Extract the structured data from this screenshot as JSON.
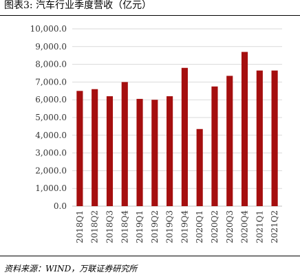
{
  "title": "图表3:   汽车行业季度营收（亿元）",
  "source": "资料来源：WIND，万联证券研究所",
  "colors": {
    "bar": "#a50f0f",
    "grid": "#d9d9d9",
    "axis": "#bfbfbf"
  },
  "chart_data": {
    "type": "bar",
    "categories": [
      "2018Q1",
      "2018Q2",
      "2018Q3",
      "2018Q4",
      "2019Q1",
      "2019Q2",
      "2019Q3",
      "2019Q4",
      "2020Q1",
      "2020Q2",
      "2020Q3",
      "2020Q4",
      "2021Q1",
      "2021Q2"
    ],
    "values": [
      6500,
      6600,
      6200,
      7000,
      6050,
      6000,
      6200,
      7800,
      4350,
      6750,
      7350,
      8700,
      7650,
      7650
    ],
    "y_ticks": [
      "0.0",
      "1,000.0",
      "2,000.0",
      "3,000.0",
      "4,000.0",
      "5,000.0",
      "6,000.0",
      "7,000.0",
      "8,000.0",
      "9,000.0",
      "10,000.0"
    ],
    "ylim": [
      0,
      10000
    ],
    "grid": true,
    "legend": "none"
  }
}
